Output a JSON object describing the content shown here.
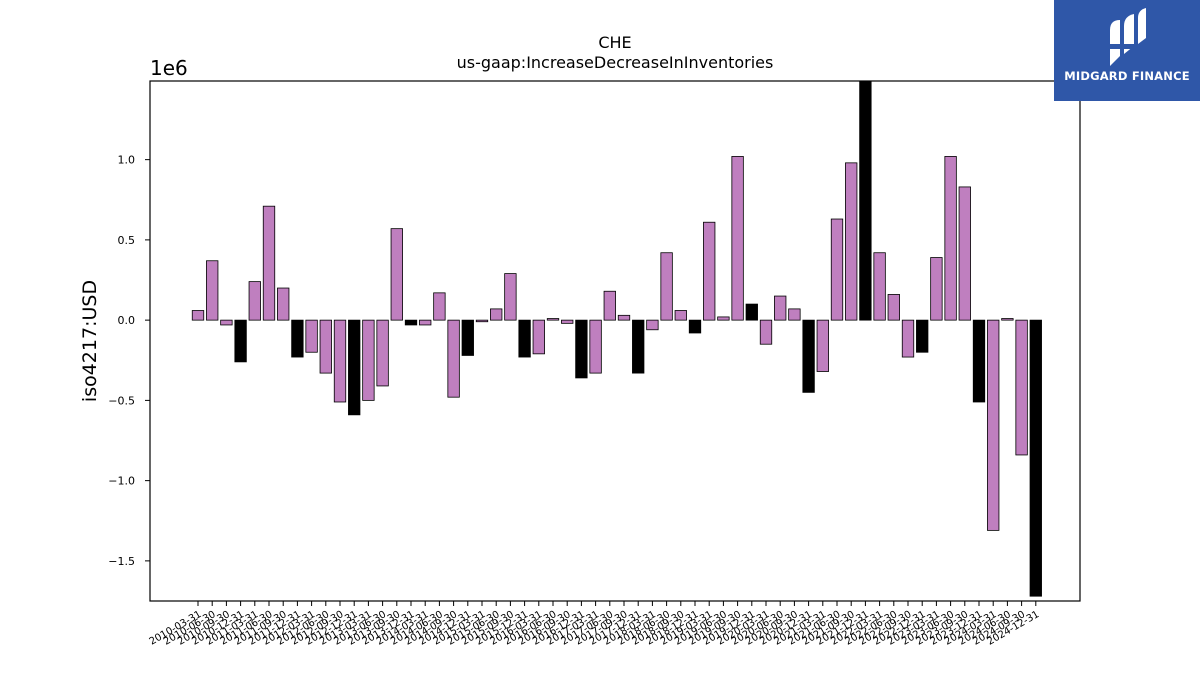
{
  "chart_data": {
    "type": "bar",
    "title": "CHE",
    "subtitle": "us-gaap:IncreaseDecreaseInInventories",
    "ylabel": "iso4217:USD",
    "xlabel": "",
    "offset_text": "1e6",
    "ylim": [
      -1.75,
      1.49
    ],
    "yticks": [
      -1.5,
      -1.0,
      -0.5,
      0.0,
      0.5,
      1.0
    ],
    "ytick_labels": [
      "−1.5",
      "−1.0",
      "−0.5",
      "0.0",
      "0.5",
      "1.0"
    ],
    "colors": {
      "purple": "#bf7fbf",
      "black": "#000000"
    },
    "categories": [
      "2010-03-31",
      "2010-06-30",
      "2010-09-30",
      "2010-12-31",
      "2011-03-31",
      "2011-06-30",
      "2011-09-30",
      "2011-12-31",
      "2012-03-31",
      "2012-06-30",
      "2012-09-30",
      "2012-12-31",
      "2013-03-31",
      "2013-06-30",
      "2013-09-30",
      "2013-12-31",
      "2014-03-31",
      "2014-06-30",
      "2014-09-30",
      "2014-12-31",
      "2015-03-31",
      "2015-06-30",
      "2015-09-30",
      "2015-12-31",
      "2016-03-31",
      "2016-06-30",
      "2016-09-30",
      "2016-12-31",
      "2017-03-31",
      "2017-06-30",
      "2017-09-30",
      "2017-12-31",
      "2018-03-31",
      "2018-06-30",
      "2018-09-30",
      "2018-12-31",
      "2019-03-31",
      "2019-06-30",
      "2019-09-30",
      "2019-12-31",
      "2020-03-31",
      "2020-06-30",
      "2020-09-30",
      "2020-12-31",
      "2021-03-31",
      "2021-06-30",
      "2021-09-30",
      "2021-12-31",
      "2022-03-31",
      "2022-06-30",
      "2022-09-30",
      "2022-12-31",
      "2023-03-31",
      "2023-06-30",
      "2023-09-30",
      "2023-12-31",
      "2024-03-31",
      "2024-06-30",
      "2024-09-30",
      "2024-12-31"
    ],
    "values": [
      0.06,
      0.37,
      -0.03,
      -0.26,
      0.24,
      0.71,
      0.2,
      -0.23,
      -0.2,
      -0.33,
      -0.51,
      -0.59,
      -0.5,
      -0.41,
      0.57,
      -0.03,
      -0.03,
      0.17,
      -0.48,
      -0.22,
      -0.01,
      0.07,
      0.29,
      -0.23,
      -0.21,
      0.01,
      -0.02,
      -0.36,
      -0.33,
      0.18,
      0.03,
      -0.33,
      -0.06,
      0.42,
      0.06,
      -0.08,
      0.61,
      0.02,
      1.02,
      0.1,
      -0.15,
      0.15,
      0.07,
      -0.45,
      -0.32,
      0.63,
      0.98,
      1.49,
      0.42,
      0.16,
      -0.23,
      -0.2,
      0.39,
      1.02,
      0.83,
      -0.51,
      -1.31,
      0.01,
      -0.84,
      -1.72
    ],
    "bar_colors": [
      "purple",
      "purple",
      "purple",
      "black",
      "purple",
      "purple",
      "purple",
      "black",
      "purple",
      "purple",
      "purple",
      "black",
      "purple",
      "purple",
      "purple",
      "black",
      "purple",
      "purple",
      "purple",
      "black",
      "purple",
      "purple",
      "purple",
      "black",
      "purple",
      "purple",
      "purple",
      "black",
      "purple",
      "purple",
      "purple",
      "black",
      "purple",
      "purple",
      "purple",
      "black",
      "purple",
      "purple",
      "purple",
      "black",
      "purple",
      "purple",
      "purple",
      "black",
      "purple",
      "purple",
      "purple",
      "black",
      "purple",
      "purple",
      "purple",
      "black",
      "purple",
      "purple",
      "purple",
      "black",
      "purple",
      "purple",
      "purple",
      "black"
    ],
    "grid": false,
    "legend": "none"
  },
  "logo": {
    "text": "MIDGARD FINANCE",
    "icon": "midgard-logo-icon"
  }
}
